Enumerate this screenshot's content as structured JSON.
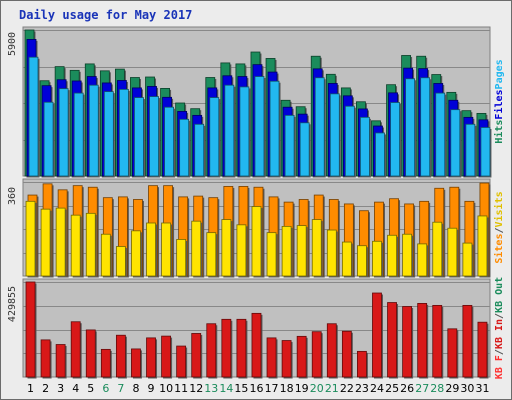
{
  "title": "Daily usage for May 2017",
  "chart_data": {
    "type": "bar",
    "categories": [
      "1",
      "2",
      "3",
      "4",
      "5",
      "6",
      "7",
      "8",
      "9",
      "10",
      "11",
      "12",
      "13",
      "14",
      "15",
      "16",
      "17",
      "18",
      "19",
      "20",
      "21",
      "22",
      "23",
      "24",
      "25",
      "26",
      "27",
      "28",
      "29",
      "30",
      "31"
    ],
    "weekend_days": [
      "6",
      "7",
      "13",
      "14",
      "20",
      "21",
      "27",
      "28"
    ],
    "colors": {
      "hits": "#1b8c5c",
      "files": "#0000d8",
      "pages": "#22b8f0",
      "visits": "#ffe400",
      "sites": "#ff8c00",
      "kb_in": "#d81818",
      "kb_out": "#1b8c5c",
      "kb_f": "#ff3030",
      "weekday_text": "#000000",
      "weekend_text": "#1b8c5c",
      "plot_bg": "#c0c0c0",
      "grid": "#888888"
    },
    "panels": [
      {
        "id": "hits_files_pages",
        "ymax": 5900,
        "ymax_label": "5900",
        "legend": [
          {
            "text": "Hits",
            "color": "#1b8c5c"
          },
          {
            "text": "Files",
            "color": "#0000d8"
          },
          {
            "text": "Pages",
            "color": "#22b8f0"
          }
        ],
        "series": [
          {
            "name": "Hits",
            "color": "#1b8c5c",
            "values": [
              5900,
              3850,
              4420,
              4270,
              4530,
              4250,
              4320,
              3980,
              4000,
              3540,
              2950,
              2720,
              3980,
              4570,
              4530,
              5010,
              4750,
              3060,
              2800,
              4840,
              4110,
              3560,
              3000,
              2230,
              3690,
              4870,
              4840,
              4100,
              3380,
              2640,
              2530
            ]
          },
          {
            "name": "Files",
            "color": "#0000d8",
            "values": [
              5520,
              3650,
              3890,
              3840,
              4020,
              3760,
              3860,
              3560,
              3620,
              3180,
              2610,
              2450,
              3560,
              4050,
              4020,
              4500,
              4200,
              2780,
              2500,
              4330,
              3740,
              3240,
              2710,
              2020,
              3360,
              4360,
              4340,
              3740,
              3060,
              2370,
              2270
            ]
          },
          {
            "name": "Pages",
            "color": "#22b8f0",
            "values": [
              4800,
              2980,
              3530,
              3350,
              3670,
              3410,
              3500,
              3170,
              3210,
              2780,
              2290,
              2090,
              3170,
              3670,
              3600,
              4020,
              3830,
              2450,
              2150,
              3970,
              3320,
              2820,
              2370,
              1740,
              2970,
              3930,
              3970,
              3350,
              2680,
              2090,
              1960
            ]
          }
        ]
      },
      {
        "id": "sites_visits",
        "ymax": 360,
        "ymax_label": "360",
        "legend": [
          {
            "text": "Sites",
            "color": "#ff8c00"
          },
          {
            "text": "/",
            "color": "#555555"
          },
          {
            "text": "Visits",
            "color": "#e0c000"
          }
        ],
        "series": [
          {
            "name": "Sites",
            "color": "#ff8c00",
            "values": [
              310,
              353,
              330,
              346,
              340,
              300,
              303,
              293,
              346,
              346,
              303,
              306,
              300,
              343,
              343,
              340,
              303,
              283,
              293,
              310,
              293,
              276,
              250,
              283,
              296,
              276,
              286,
              336,
              340,
              286,
              356
            ]
          },
          {
            "name": "Visits",
            "color": "#ffe400",
            "values": [
              286,
              256,
              260,
              233,
              240,
              160,
              113,
              173,
              203,
              203,
              140,
              210,
              166,
              216,
              196,
              266,
              166,
              190,
              193,
              216,
              176,
              130,
              116,
              133,
              156,
              160,
              123,
              206,
              183,
              126,
              230
            ]
          }
        ]
      },
      {
        "id": "kbytes",
        "ymax": 429855,
        "ymax_label": "429855",
        "legend": [
          {
            "text": "KB F",
            "color": "#ff3030"
          },
          {
            "text": "/",
            "color": "#555555"
          },
          {
            "text": "KB In",
            "color": "#d81818"
          },
          {
            "text": "/",
            "color": "#555555"
          },
          {
            "text": "KB Out",
            "color": "#1b8c5c"
          }
        ],
        "series": [
          {
            "name": "KB In",
            "color": "#d81818",
            "values": [
              429855,
              168000,
              147000,
              250000,
              213000,
              125000,
              189000,
              127000,
              177000,
              185000,
              140000,
              197000,
              241000,
              261000,
              261000,
              288000,
              177000,
              165000,
              184000,
              205000,
              241000,
              207000,
              116000,
              380000,
              337000,
              319000,
              333000,
              324000,
              218000,
              324000,
              248000
            ]
          }
        ]
      }
    ]
  }
}
